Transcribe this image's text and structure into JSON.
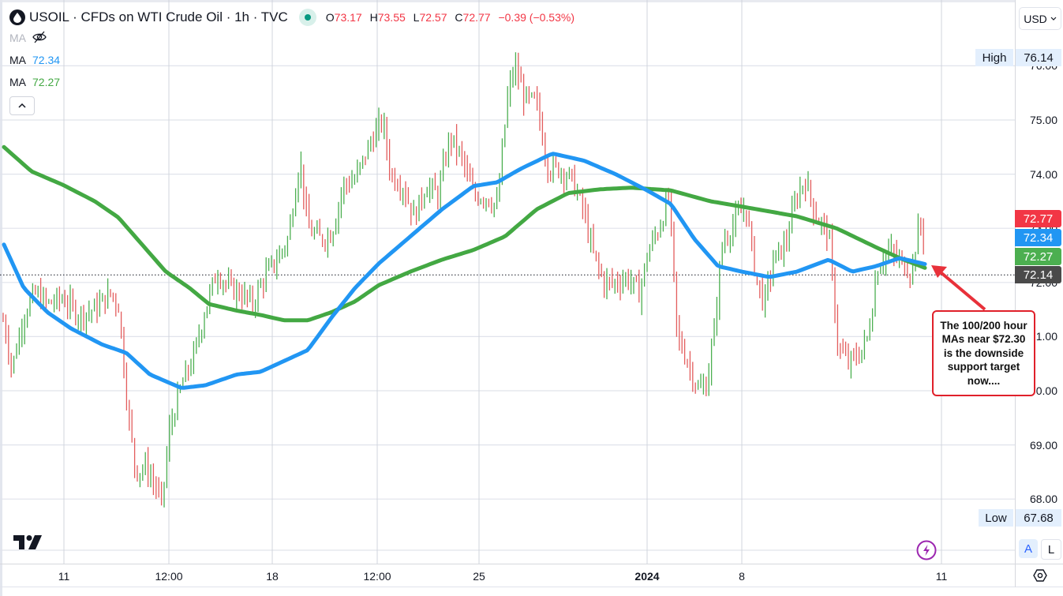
{
  "header": {
    "symbol_icon": "oil-drop-icon",
    "title": "USOIL · CFDs on WTI Crude Oil · 1h · TVC",
    "market_status": "market-open-dot",
    "ohlc": {
      "open_label": "O",
      "open": "73.17",
      "high_label": "H",
      "high": "73.55",
      "low_label": "L",
      "low": "72.57",
      "close_label": "C",
      "close": "72.77",
      "change": "−0.39 (−0.53%)"
    }
  },
  "indicators": [
    {
      "label": "MA",
      "value": "",
      "hidden": true,
      "icon": "eye-off-icon"
    },
    {
      "label": "MA",
      "value": "72.34",
      "color": "#2196f3"
    },
    {
      "label": "MA",
      "value": "72.27",
      "color": "#4caf50"
    }
  ],
  "collapse_icon": "chevron-up-icon",
  "currency_button": {
    "label": "USD",
    "icon": "chevron-down-icon"
  },
  "price_axis": {
    "ticks": [
      "76.00",
      "75.00",
      "74.00",
      "73.00",
      "72.00",
      "71.00",
      "70.00",
      "69.00",
      "68.00"
    ],
    "high": {
      "label": "High",
      "value": "76.14"
    },
    "low": {
      "label": "Low",
      "value": "67.68"
    },
    "tags": [
      {
        "value": "72.77",
        "color": "#f23645",
        "kind": "last-price"
      },
      {
        "value": "72.34",
        "color": "#2196f3",
        "kind": "ma-blue"
      },
      {
        "value": "72.27",
        "color": "#4caf50",
        "kind": "ma-green"
      },
      {
        "value": "72.14",
        "color": "#4a4a4a",
        "kind": "crosshair"
      }
    ]
  },
  "time_axis": {
    "ticks": [
      {
        "label": "11",
        "x": 81
      },
      {
        "label": "12:00",
        "x": 214
      },
      {
        "label": "18",
        "x": 345
      },
      {
        "label": "12:00",
        "x": 478
      },
      {
        "label": "25",
        "x": 607
      },
      {
        "label": "2024",
        "x": 820,
        "bold": true
      },
      {
        "label": "8",
        "x": 940
      },
      {
        "label": "11",
        "x": 1193
      }
    ]
  },
  "scale_buttons": {
    "auto": "A",
    "log": "L"
  },
  "settings_icon": "gear-hexagon-icon",
  "logo": "tradingview-logo",
  "alert_icon": "lightning-bolt-icon",
  "annotation": {
    "text": "The 100/200 hour MAs near $72.30 is the downside support target now....",
    "arrow_color": "#e8313a"
  },
  "colors": {
    "up": "#4caf50",
    "down": "#e35d5d",
    "ma_fast": "#2196f3",
    "ma_slow": "#43a843",
    "grid": "#e0e3eb",
    "crosshair_price": "72.14"
  },
  "chart_data": {
    "type": "line",
    "title": "USOIL · CFDs on WTI Crude Oil · 1h · TVC",
    "xlabel": "",
    "ylabel": "USD",
    "ylim": [
      67.3,
      76.5
    ],
    "x_ticks": [
      "11",
      "12:00",
      "18",
      "12:00",
      "25",
      "2024",
      "8",
      "11"
    ],
    "y_ticks": [
      68,
      69,
      70,
      71,
      72,
      73,
      74,
      75,
      76
    ],
    "grid": true,
    "annotations": [
      "The 100/200 hour MAs near $72.30 is the downside support target now....",
      "High 76.14",
      "Low 67.68"
    ],
    "series": [
      {
        "name": "Price (close, approx)",
        "x": [
          5,
          15,
          30,
          45,
          60,
          80,
          100,
          120,
          140,
          150,
          163,
          172,
          185,
          198,
          205,
          215,
          230,
          245,
          260,
          275,
          290,
          305,
          320,
          335,
          350,
          365,
          380,
          390,
          405,
          420,
          435,
          450,
          470,
          485,
          495,
          510,
          525,
          540,
          555,
          570,
          585,
          600,
          615,
          630,
          643,
          652,
          665,
          680,
          695,
          710,
          725,
          740,
          750,
          765,
          780,
          795,
          810,
          822,
          835,
          848,
          858,
          870,
          885,
          895,
          905,
          915,
          930,
          945,
          958,
          968,
          980,
          995,
          1010,
          1020,
          1035,
          1050,
          1062,
          1075,
          1090,
          1100,
          1112,
          1125,
          1140,
          1155,
          1165,
          1172
        ],
        "values": [
          71.3,
          70.4,
          71.4,
          71.8,
          71.6,
          71.7,
          71.4,
          71.5,
          71.8,
          71.6,
          69.5,
          68.5,
          68.6,
          68.2,
          67.9,
          69.3,
          70.1,
          70.6,
          71.5,
          72.2,
          71.9,
          71.8,
          71.6,
          72.1,
          72.4,
          72.8,
          74.3,
          73.0,
          72.8,
          72.9,
          73.8,
          73.9,
          74.6,
          75.0,
          74.0,
          73.8,
          73.2,
          73.8,
          73.6,
          74.7,
          74.3,
          73.6,
          73.6,
          73.4,
          75.4,
          76.0,
          75.4,
          75.3,
          74.1,
          74.1,
          73.9,
          73.3,
          72.6,
          72.0,
          72.0,
          72.1,
          71.8,
          72.6,
          73.0,
          73.6,
          71.0,
          70.6,
          70.0,
          70.1,
          71.1,
          72.7,
          73.1,
          73.4,
          72.1,
          71.6,
          72.4,
          72.7,
          73.6,
          73.9,
          73.2,
          72.9,
          70.8,
          70.5,
          70.7,
          71.0,
          72.3,
          72.6,
          72.4,
          72.2,
          73.1,
          72.77
        ]
      },
      {
        "name": "MA (100) blue",
        "x": [
          5,
          30,
          60,
          90,
          130,
          160,
          190,
          230,
          260,
          300,
          330,
          360,
          390,
          420,
          450,
          480,
          520,
          560,
          600,
          630,
          660,
          700,
          740,
          780,
          820,
          850,
          880,
          910,
          940,
          975,
          1010,
          1050,
          1080,
          1110,
          1140,
          1172
        ],
        "values": [
          72.7,
          71.9,
          71.45,
          71.15,
          70.85,
          70.7,
          70.3,
          70.05,
          70.1,
          70.3,
          70.35,
          70.55,
          70.75,
          71.35,
          71.9,
          72.35,
          72.85,
          73.35,
          73.78,
          73.85,
          74.1,
          74.38,
          74.25,
          74.0,
          73.7,
          73.45,
          72.8,
          72.3,
          72.2,
          72.1,
          72.2,
          72.42,
          72.2,
          72.3,
          72.45,
          72.34
        ]
      },
      {
        "name": "MA (200) green",
        "x": [
          5,
          40,
          80,
          120,
          150,
          180,
          210,
          240,
          265,
          300,
          330,
          360,
          390,
          420,
          450,
          480,
          520,
          560,
          600,
          640,
          680,
          720,
          760,
          800,
          850,
          900,
          960,
          1010,
          1060,
          1110,
          1140,
          1172
        ],
        "values": [
          74.5,
          74.05,
          73.8,
          73.5,
          73.2,
          72.7,
          72.2,
          71.9,
          71.6,
          71.48,
          71.4,
          71.3,
          71.3,
          71.45,
          71.65,
          71.95,
          72.2,
          72.42,
          72.6,
          72.85,
          73.35,
          73.65,
          73.72,
          73.75,
          73.7,
          73.5,
          73.35,
          73.22,
          73.0,
          72.65,
          72.45,
          72.27
        ]
      }
    ]
  }
}
